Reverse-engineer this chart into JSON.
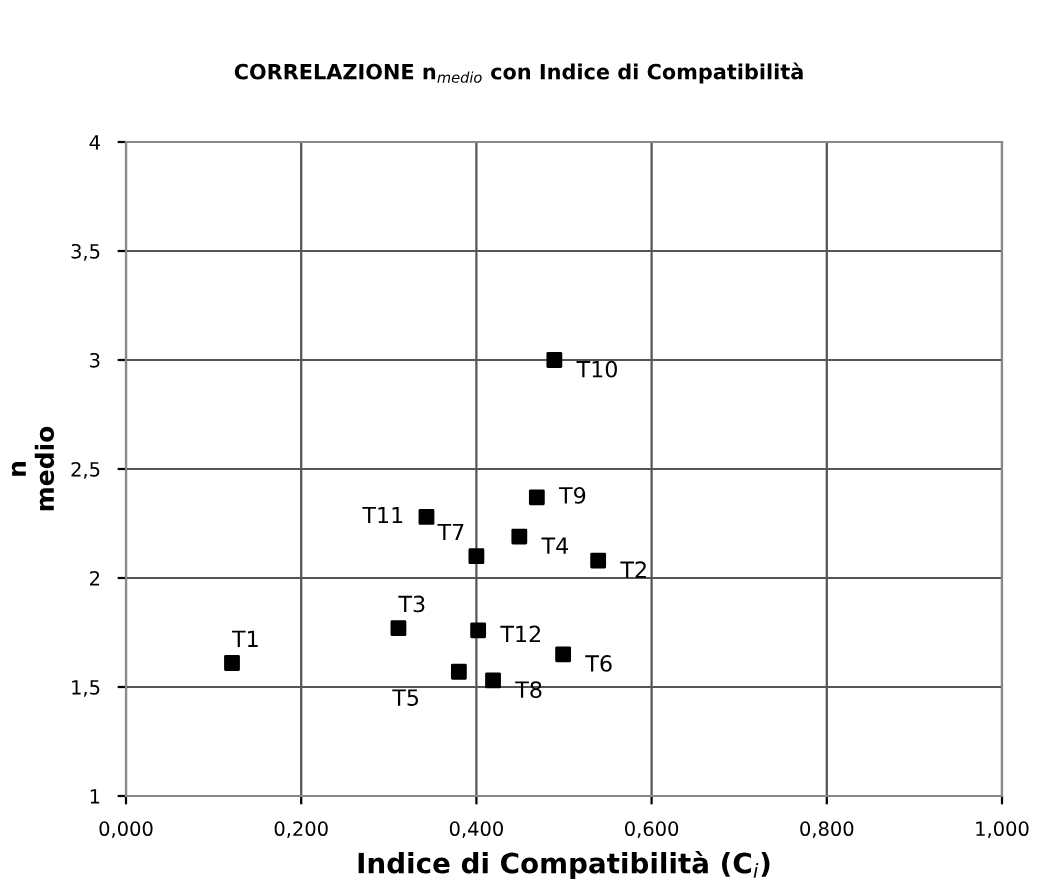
{
  "chart_data": {
    "type": "scatter",
    "title": "CORRELAZIONE n$_{medio}$ con Indice di Compatibilità",
    "xlabel": "Indice di Compatibilità (C$_{i}$)",
    "ylabel": "n\nmedio",
    "x": [
      0.121,
      0.539,
      0.311,
      0.449,
      0.38,
      0.499,
      0.4,
      0.419,
      0.469,
      0.489,
      0.343,
      0.402
    ],
    "series": [
      {
        "color": "#000000",
        "values": [
          1.61,
          2.08,
          1.77,
          2.19,
          1.57,
          1.65,
          2.1,
          1.53,
          2.37,
          3.0,
          2.28,
          1.76
        ]
      }
    ],
    "annotations": [
      {
        "text": "T1",
        "x": 0.121,
        "y": 1.61
      },
      {
        "text": "T2",
        "x": 0.539,
        "y": 2.08
      },
      {
        "text": "T3",
        "x": 0.311,
        "y": 1.77
      },
      {
        "text": "T4",
        "x": 0.449,
        "y": 2.19
      },
      {
        "text": "T5",
        "x": 0.38,
        "y": 1.57
      },
      {
        "text": "T6",
        "x": 0.499,
        "y": 1.65
      },
      {
        "text": "T7",
        "x": 0.4,
        "y": 2.1
      },
      {
        "text": "T8",
        "x": 0.419,
        "y": 1.53
      },
      {
        "text": "T9",
        "x": 0.469,
        "y": 2.37
      },
      {
        "text": "T10",
        "x": 0.489,
        "y": 3.0
      },
      {
        "text": "T11",
        "x": 0.343,
        "y": 2.28
      },
      {
        "text": "T12",
        "x": 0.402,
        "y": 1.76
      }
    ],
    "xlim": [
      0,
      1
    ],
    "ylim": [
      1,
      4
    ],
    "xticks": [
      {
        "value": 0,
        "label": "0,000"
      },
      {
        "value": 0.2,
        "label": "0,200"
      },
      {
        "value": 0.4,
        "label": "0,400"
      },
      {
        "value": 0.6,
        "label": "0,600"
      },
      {
        "value": 0.8,
        "label": "0,800"
      },
      {
        "value": 1,
        "label": "1,000"
      }
    ],
    "yticks": [
      1,
      {
        "value": 1.5,
        "label": "1,5"
      },
      2,
      {
        "value": 2.5,
        "label": "2,5"
      },
      3,
      {
        "value": 3.5,
        "label": "3,5"
      },
      4
    ],
    "grid": true,
    "marker": "square",
    "legend": false
  }
}
